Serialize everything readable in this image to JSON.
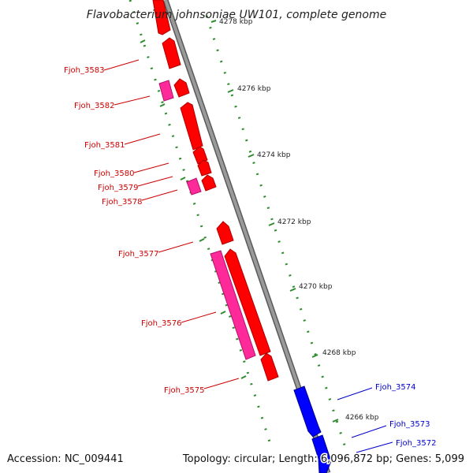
{
  "title": "Flavobacterium johnsoniae UW101, complete genome",
  "footer": {
    "accession": "Accession: NC_009441",
    "summary": "Topology: circular; Length: 6,096,872 bp; Genes: 5,099"
  },
  "colors": {
    "backbone": "#8c8c8c",
    "tick": "#2e8b2e",
    "forward_gene": "#ff0000",
    "forward_gene_alt": "#ff2a9a",
    "reverse_gene": "#0000ff",
    "forward_label": "#cc0000",
    "reverse_label": "#0000cc"
  },
  "ticks": [
    {
      "label": "4278 kbp",
      "kbp": 4278
    },
    {
      "label": "4276 kbp",
      "kbp": 4276
    },
    {
      "label": "4274 kbp",
      "kbp": 4274
    },
    {
      "label": "4272 kbp",
      "kbp": 4272
    },
    {
      "label": "4270 kbp",
      "kbp": 4270
    },
    {
      "label": "4268 kbp",
      "kbp": 4268
    },
    {
      "label": "4266 kbp",
      "kbp": 4266
    }
  ],
  "genes": [
    {
      "label": "Fjoh_3583",
      "strand": "forward"
    },
    {
      "label": "Fjoh_3582",
      "strand": "forward"
    },
    {
      "label": "Fjoh_3581",
      "strand": "forward"
    },
    {
      "label": "Fjoh_3580",
      "strand": "forward"
    },
    {
      "label": "Fjoh_3579",
      "strand": "forward"
    },
    {
      "label": "Fjoh_3578",
      "strand": "forward"
    },
    {
      "label": "Fjoh_3577",
      "strand": "forward"
    },
    {
      "label": "Fjoh_3576",
      "strand": "forward"
    },
    {
      "label": "Fjoh_3575",
      "strand": "forward"
    },
    {
      "label": "Fjoh_3574",
      "strand": "reverse"
    },
    {
      "label": "Fjoh_3573",
      "strand": "reverse"
    },
    {
      "label": "Fjoh_3572",
      "strand": "reverse"
    }
  ]
}
